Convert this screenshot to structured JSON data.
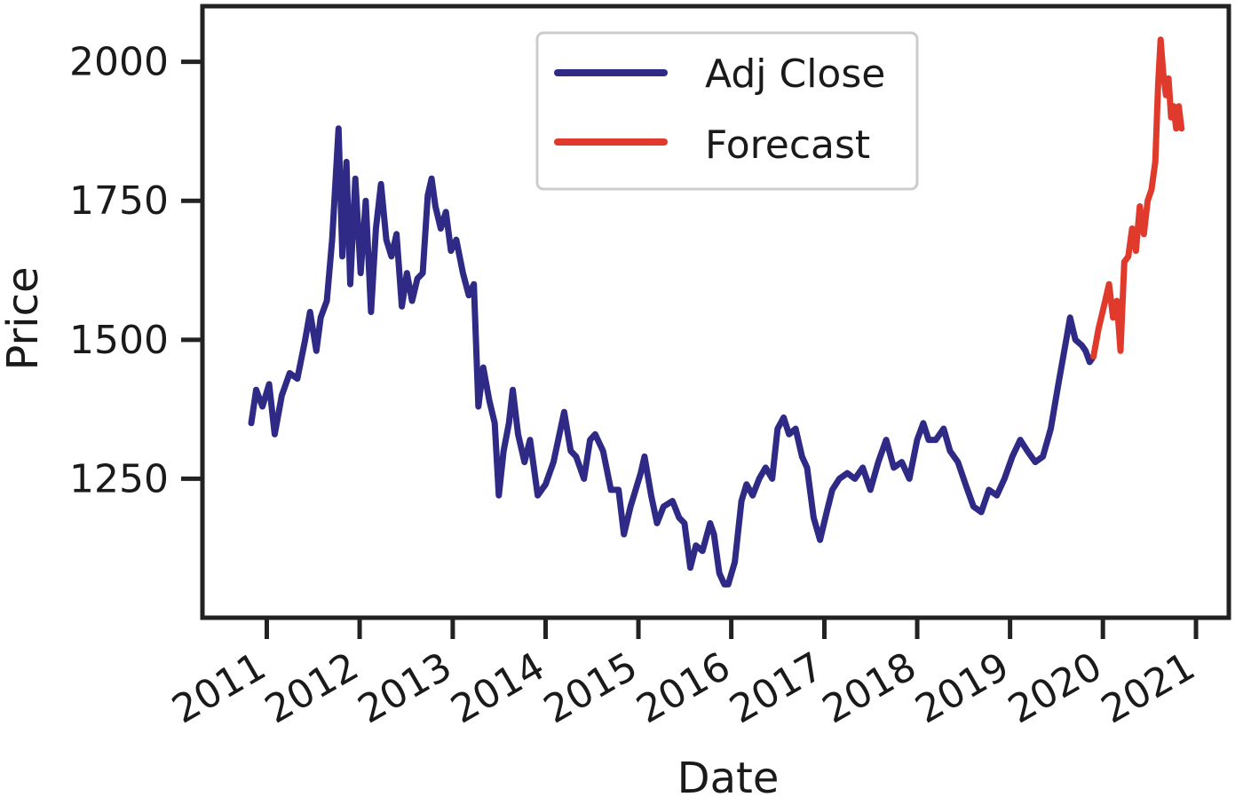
{
  "chart_data": {
    "type": "line",
    "title": "",
    "xlabel": "Date",
    "ylabel": "Price",
    "x_ticks": [
      "2011",
      "2012",
      "2013",
      "2014",
      "2015",
      "2016",
      "2017",
      "2018",
      "2019",
      "2020",
      "2021"
    ],
    "y_ticks": [
      1250,
      1500,
      1750,
      2000
    ],
    "xlim": [
      "2010-04-23",
      "2021-05-10"
    ],
    "ylim": [
      1000,
      2100
    ],
    "grid": false,
    "legend_position": "top-center",
    "series": [
      {
        "name": "Adj Close",
        "color": "#2e2a86",
        "points": [
          [
            "2010-11-01",
            1350
          ],
          [
            "2010-11-20",
            1410
          ],
          [
            "2010-12-15",
            1380
          ],
          [
            "2011-01-10",
            1420
          ],
          [
            "2011-02-01",
            1330
          ],
          [
            "2011-03-01",
            1400
          ],
          [
            "2011-04-01",
            1440
          ],
          [
            "2011-05-01",
            1430
          ],
          [
            "2011-06-01",
            1500
          ],
          [
            "2011-06-20",
            1550
          ],
          [
            "2011-07-15",
            1480
          ],
          [
            "2011-08-01",
            1540
          ],
          [
            "2011-08-25",
            1570
          ],
          [
            "2011-09-15",
            1680
          ],
          [
            "2011-10-10",
            1880
          ],
          [
            "2011-10-25",
            1650
          ],
          [
            "2011-11-10",
            1820
          ],
          [
            "2011-11-25",
            1600
          ],
          [
            "2011-12-15",
            1790
          ],
          [
            "2012-01-05",
            1620
          ],
          [
            "2012-01-25",
            1750
          ],
          [
            "2012-02-15",
            1550
          ],
          [
            "2012-03-05",
            1700
          ],
          [
            "2012-03-25",
            1780
          ],
          [
            "2012-04-15",
            1680
          ],
          [
            "2012-05-05",
            1650
          ],
          [
            "2012-05-25",
            1690
          ],
          [
            "2012-06-15",
            1560
          ],
          [
            "2012-07-05",
            1620
          ],
          [
            "2012-07-25",
            1570
          ],
          [
            "2012-08-15",
            1610
          ],
          [
            "2012-09-05",
            1620
          ],
          [
            "2012-09-25",
            1760
          ],
          [
            "2012-10-10",
            1790
          ],
          [
            "2012-10-25",
            1740
          ],
          [
            "2012-11-15",
            1700
          ],
          [
            "2012-12-05",
            1730
          ],
          [
            "2012-12-25",
            1660
          ],
          [
            "2013-01-15",
            1680
          ],
          [
            "2013-02-10",
            1620
          ],
          [
            "2013-03-05",
            1580
          ],
          [
            "2013-03-25",
            1600
          ],
          [
            "2013-04-12",
            1380
          ],
          [
            "2013-05-01",
            1450
          ],
          [
            "2013-05-25",
            1390
          ],
          [
            "2013-06-15",
            1350
          ],
          [
            "2013-07-01",
            1220
          ],
          [
            "2013-07-20",
            1300
          ],
          [
            "2013-08-10",
            1350
          ],
          [
            "2013-08-25",
            1410
          ],
          [
            "2013-09-15",
            1330
          ],
          [
            "2013-10-10",
            1280
          ],
          [
            "2013-11-01",
            1320
          ],
          [
            "2013-12-01",
            1220
          ],
          [
            "2014-01-01",
            1240
          ],
          [
            "2014-02-01",
            1280
          ],
          [
            "2014-03-15",
            1370
          ],
          [
            "2014-04-10",
            1300
          ],
          [
            "2014-05-01",
            1290
          ],
          [
            "2014-06-01",
            1250
          ],
          [
            "2014-06-25",
            1320
          ],
          [
            "2014-07-15",
            1330
          ],
          [
            "2014-08-15",
            1300
          ],
          [
            "2014-09-15",
            1230
          ],
          [
            "2014-10-15",
            1230
          ],
          [
            "2014-11-05",
            1150
          ],
          [
            "2014-12-01",
            1200
          ],
          [
            "2015-01-10",
            1260
          ],
          [
            "2015-01-25",
            1290
          ],
          [
            "2015-02-20",
            1220
          ],
          [
            "2015-03-15",
            1170
          ],
          [
            "2015-04-10",
            1200
          ],
          [
            "2015-05-15",
            1210
          ],
          [
            "2015-06-10",
            1180
          ],
          [
            "2015-07-01",
            1170
          ],
          [
            "2015-07-24",
            1090
          ],
          [
            "2015-08-15",
            1130
          ],
          [
            "2015-09-10",
            1120
          ],
          [
            "2015-10-10",
            1170
          ],
          [
            "2015-10-25",
            1150
          ],
          [
            "2015-11-15",
            1080
          ],
          [
            "2015-12-05",
            1060
          ],
          [
            "2015-12-20",
            1060
          ],
          [
            "2016-01-15",
            1100
          ],
          [
            "2016-02-10",
            1210
          ],
          [
            "2016-03-01",
            1240
          ],
          [
            "2016-03-25",
            1220
          ],
          [
            "2016-04-20",
            1250
          ],
          [
            "2016-05-15",
            1270
          ],
          [
            "2016-06-10",
            1250
          ],
          [
            "2016-07-01",
            1340
          ],
          [
            "2016-07-25",
            1360
          ],
          [
            "2016-08-15",
            1330
          ],
          [
            "2016-09-10",
            1340
          ],
          [
            "2016-10-05",
            1290
          ],
          [
            "2016-10-25",
            1270
          ],
          [
            "2016-11-20",
            1180
          ],
          [
            "2016-12-15",
            1140
          ],
          [
            "2017-01-10",
            1190
          ],
          [
            "2017-02-01",
            1230
          ],
          [
            "2017-03-01",
            1250
          ],
          [
            "2017-04-01",
            1260
          ],
          [
            "2017-05-01",
            1250
          ],
          [
            "2017-06-01",
            1270
          ],
          [
            "2017-07-01",
            1230
          ],
          [
            "2017-08-01",
            1280
          ],
          [
            "2017-09-01",
            1320
          ],
          [
            "2017-10-01",
            1270
          ],
          [
            "2017-11-01",
            1280
          ],
          [
            "2017-12-01",
            1250
          ],
          [
            "2018-01-01",
            1320
          ],
          [
            "2018-01-25",
            1350
          ],
          [
            "2018-02-15",
            1320
          ],
          [
            "2018-03-15",
            1320
          ],
          [
            "2018-04-15",
            1340
          ],
          [
            "2018-05-10",
            1300
          ],
          [
            "2018-06-10",
            1280
          ],
          [
            "2018-07-10",
            1240
          ],
          [
            "2018-08-10",
            1200
          ],
          [
            "2018-09-10",
            1190
          ],
          [
            "2018-10-10",
            1230
          ],
          [
            "2018-11-10",
            1220
          ],
          [
            "2018-12-10",
            1250
          ],
          [
            "2019-01-10",
            1290
          ],
          [
            "2019-02-10",
            1320
          ],
          [
            "2019-03-10",
            1300
          ],
          [
            "2019-04-10",
            1280
          ],
          [
            "2019-05-10",
            1290
          ],
          [
            "2019-06-10",
            1340
          ],
          [
            "2019-07-10",
            1420
          ],
          [
            "2019-08-10",
            1500
          ],
          [
            "2019-08-25",
            1540
          ],
          [
            "2019-09-15",
            1500
          ],
          [
            "2019-10-10",
            1490
          ],
          [
            "2019-10-25",
            1480
          ],
          [
            "2019-11-10",
            1460
          ],
          [
            "2019-11-25",
            1470
          ]
        ]
      },
      {
        "name": "Forecast",
        "color": "#e03a2c",
        "points": [
          [
            "2019-11-25",
            1470
          ],
          [
            "2019-12-15",
            1520
          ],
          [
            "2020-01-05",
            1560
          ],
          [
            "2020-01-25",
            1600
          ],
          [
            "2020-02-10",
            1540
          ],
          [
            "2020-02-25",
            1570
          ],
          [
            "2020-03-10",
            1480
          ],
          [
            "2020-03-25",
            1640
          ],
          [
            "2020-04-10",
            1650
          ],
          [
            "2020-04-25",
            1700
          ],
          [
            "2020-05-10",
            1660
          ],
          [
            "2020-05-25",
            1740
          ],
          [
            "2020-06-10",
            1690
          ],
          [
            "2020-06-25",
            1750
          ],
          [
            "2020-07-10",
            1770
          ],
          [
            "2020-07-25",
            1820
          ],
          [
            "2020-08-05",
            1960
          ],
          [
            "2020-08-15",
            2040
          ],
          [
            "2020-08-25",
            1980
          ],
          [
            "2020-09-05",
            1940
          ],
          [
            "2020-09-15",
            1970
          ],
          [
            "2020-09-25",
            1900
          ],
          [
            "2020-10-05",
            1920
          ],
          [
            "2020-10-15",
            1880
          ],
          [
            "2020-10-25",
            1920
          ],
          [
            "2020-11-05",
            1880
          ]
        ]
      }
    ]
  }
}
